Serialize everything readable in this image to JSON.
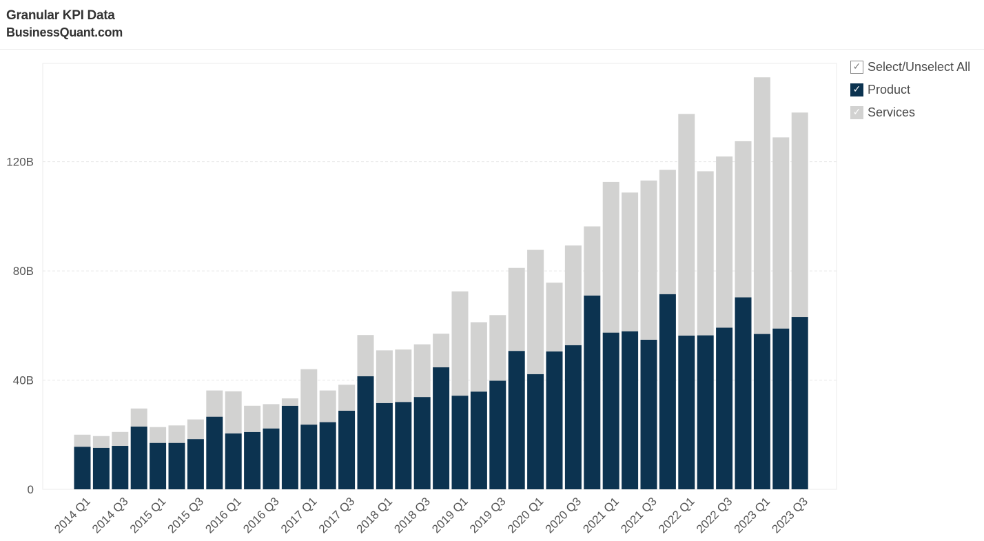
{
  "header": {
    "title": "Granular KPI Data",
    "subtitle": "BusinessQuant.com"
  },
  "legend": {
    "items": [
      {
        "label": "Select/Unselect All",
        "checked": true,
        "color": "#ffffff"
      },
      {
        "label": "Product",
        "checked": true,
        "color": "#0c3350"
      },
      {
        "label": "Services",
        "checked": true,
        "color": "#d2d2d1"
      }
    ]
  },
  "chart_data": {
    "type": "bar",
    "stacked": true,
    "title": "",
    "xlabel": "",
    "ylabel": "",
    "ylim": [
      0,
      156
    ],
    "y_ticks": [
      0,
      40,
      80,
      120
    ],
    "y_tick_labels": [
      "0",
      "40B",
      "80B",
      "120B"
    ],
    "grid": true,
    "legend_position": "top-right",
    "categories": [
      "2014 Q1",
      "2014 Q2",
      "2014 Q3",
      "2014 Q4",
      "2015 Q1",
      "2015 Q2",
      "2015 Q3",
      "2015 Q4",
      "2016 Q1",
      "2016 Q2",
      "2016 Q3",
      "2016 Q4",
      "2017 Q1",
      "2017 Q2",
      "2017 Q3",
      "2017 Q4",
      "2018 Q1",
      "2018 Q2",
      "2018 Q3",
      "2018 Q4",
      "2019 Q1",
      "2019 Q2",
      "2019 Q3",
      "2019 Q4",
      "2020 Q1",
      "2020 Q2",
      "2020 Q3",
      "2020 Q4",
      "2021 Q1",
      "2021 Q2",
      "2021 Q3",
      "2021 Q4",
      "2022 Q1",
      "2022 Q2",
      "2022 Q3",
      "2022 Q4",
      "2023 Q1",
      "2023 Q2",
      "2023 Q3"
    ],
    "x_tick_labels": [
      "2014 Q1",
      "",
      "2014 Q3",
      "",
      "2015 Q1",
      "",
      "2015 Q3",
      "",
      "2016 Q1",
      "",
      "2016 Q3",
      "",
      "2017 Q1",
      "",
      "2017 Q3",
      "",
      "2018 Q1",
      "",
      "2018 Q3",
      "",
      "2019 Q1",
      "",
      "2019 Q3",
      "",
      "2020 Q1",
      "",
      "2020 Q3",
      "",
      "2021 Q1",
      "",
      "2021 Q3",
      "",
      "2022 Q1",
      "",
      "2022 Q3",
      "",
      "2023 Q1",
      "",
      "2023 Q3"
    ],
    "series": [
      {
        "name": "Product",
        "color": "#0c3350",
        "values": [
          15.6,
          15.2,
          15.9,
          23.0,
          17.0,
          17.0,
          18.4,
          26.6,
          20.5,
          21.0,
          22.3,
          30.6,
          23.7,
          24.6,
          28.8,
          41.4,
          31.6,
          32.0,
          33.8,
          44.7,
          34.3,
          35.8,
          39.8,
          50.7,
          42.2,
          50.5,
          52.8,
          71.0,
          57.4,
          57.9,
          54.8,
          71.5,
          56.3,
          56.4,
          59.2,
          70.3,
          56.9,
          58.9,
          63.1
        ]
      },
      {
        "name": "Services",
        "color": "#d2d2d1",
        "values": [
          4.4,
          4.3,
          5.1,
          6.6,
          5.8,
          6.4,
          7.2,
          9.6,
          15.4,
          9.6,
          8.9,
          2.7,
          20.3,
          11.6,
          9.5,
          15.1,
          19.3,
          19.2,
          19.3,
          12.3,
          38.2,
          25.4,
          24.0,
          30.4,
          45.5,
          25.2,
          36.5,
          25.3,
          55.2,
          50.8,
          58.3,
          45.5,
          81.2,
          60.1,
          62.7,
          57.2,
          94.0,
          70.0,
          74.9
        ]
      }
    ]
  }
}
